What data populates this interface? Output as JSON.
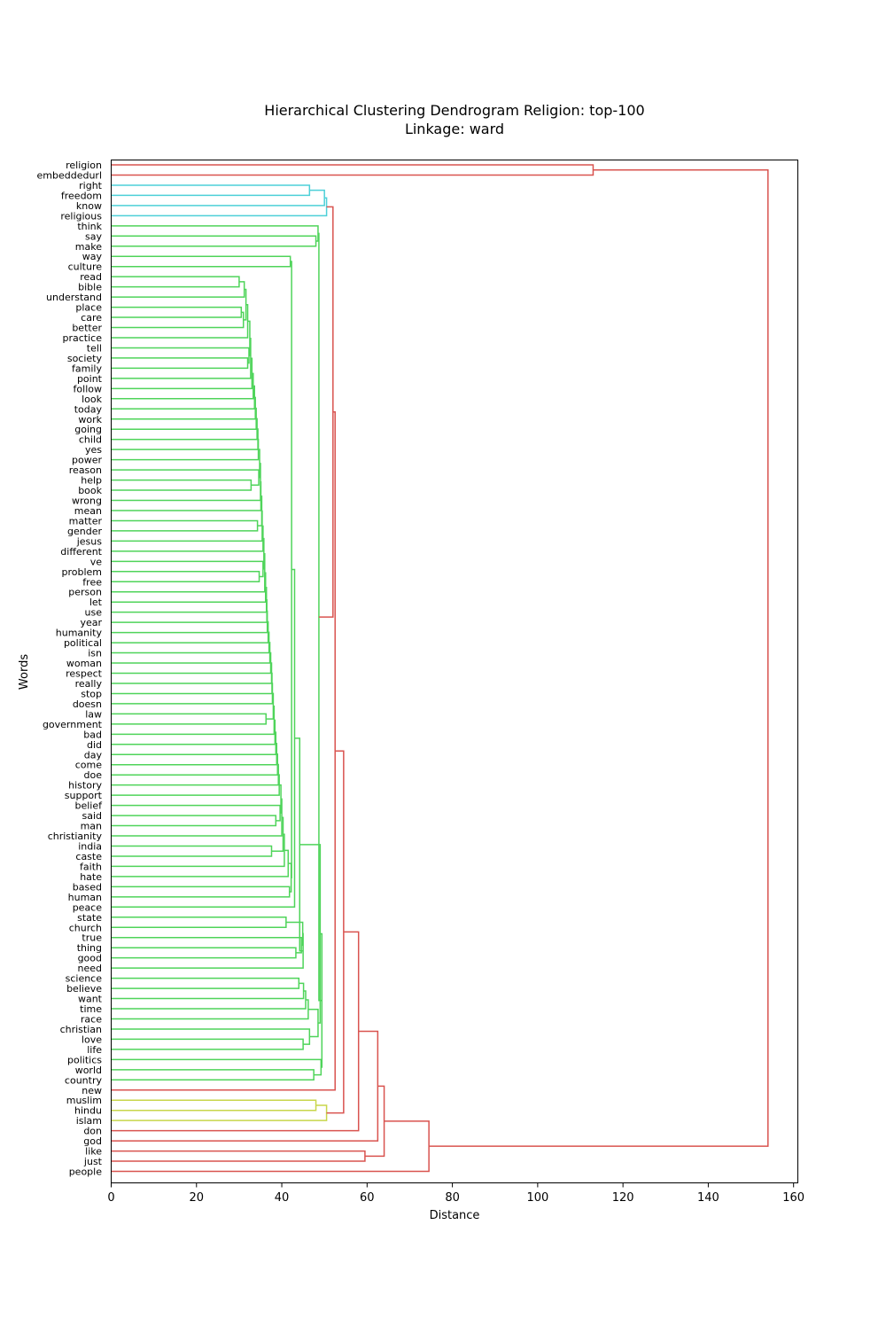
{
  "chart_data": {
    "type": "dendrogram",
    "title": "Hierarchical Clustering Dendrogram Religion: top-100",
    "subtitle": "Linkage: ward",
    "xlabel": "Distance",
    "ylabel": "Words",
    "xlim": [
      0,
      161
    ],
    "xticks": [
      "0",
      "20",
      "40",
      "60",
      "80",
      "100",
      "120",
      "140",
      "160"
    ],
    "orientation": "leaves-left",
    "colors": {
      "above_threshold": "#d9534f",
      "cluster_cyan": "#4dd0d8",
      "cluster_green": "#4fd45a",
      "cluster_yellow": "#c8d64a",
      "frame": "#000000"
    },
    "leaves": [
      "religion",
      "embeddedurl",
      "right",
      "freedom",
      "know",
      "religious",
      "think",
      "say",
      "make",
      "way",
      "culture",
      "read",
      "bible",
      "understand",
      "place",
      "care",
      "better",
      "practice",
      "tell",
      "society",
      "family",
      "point",
      "follow",
      "look",
      "today",
      "work",
      "going",
      "child",
      "yes",
      "power",
      "reason",
      "help",
      "book",
      "wrong",
      "mean",
      "matter",
      "gender",
      "jesus",
      "different",
      "ve",
      "problem",
      "free",
      "person",
      "let",
      "use",
      "year",
      "humanity",
      "political",
      "isn",
      "woman",
      "respect",
      "really",
      "stop",
      "doesn",
      "law",
      "government",
      "bad",
      "did",
      "day",
      "come",
      "doe",
      "history",
      "support",
      "belief",
      "said",
      "man",
      "christianity",
      "india",
      "caste",
      "faith",
      "hate",
      "based",
      "human",
      "peace",
      "state",
      "church",
      "true",
      "thing",
      "good",
      "need",
      "science",
      "believe",
      "want",
      "time",
      "race",
      "christian",
      "love",
      "life",
      "politics",
      "world",
      "country",
      "new",
      "muslim",
      "hindu",
      "islam",
      "don",
      "god",
      "like",
      "just",
      "people"
    ],
    "merges": [
      {
        "l": "read",
        "r": "bible",
        "d": 30,
        "c": "g",
        "id": "m_rb"
      },
      {
        "l": "place",
        "r": "care",
        "d": 30.5,
        "c": "g",
        "id": "m_pc"
      },
      {
        "l": "m_pc",
        "r": "better",
        "d": 31,
        "c": "g",
        "id": "m_pcb"
      },
      {
        "l": "m_rb",
        "r": "understand",
        "d": 31.2,
        "c": "g",
        "id": "m_rbu"
      },
      {
        "l": "m_rbu",
        "r": "m_pcb",
        "d": 31.6,
        "c": "g",
        "id": "m1"
      },
      {
        "l": "m1",
        "r": "practice",
        "d": 32,
        "c": "g",
        "id": "m2"
      },
      {
        "l": "society",
        "r": "family",
        "d": 32,
        "c": "g",
        "id": "m_sf"
      },
      {
        "l": "tell",
        "r": "m_sf",
        "d": 32.3,
        "c": "g",
        "id": "m_tsf"
      },
      {
        "l": "m2",
        "r": "m_tsf",
        "d": 32.5,
        "c": "g",
        "id": "m3"
      },
      {
        "l": "m3",
        "r": "point",
        "d": 32.7,
        "c": "g",
        "id": "m4"
      },
      {
        "l": "m4",
        "r": "follow",
        "d": 33,
        "c": "g",
        "id": "m5"
      },
      {
        "l": "m5",
        "r": "look",
        "d": 33.3,
        "c": "g",
        "id": "m6"
      },
      {
        "l": "m6",
        "r": "today",
        "d": 33.6,
        "c": "g",
        "id": "m7"
      },
      {
        "l": "m7",
        "r": "work",
        "d": 33.8,
        "c": "g",
        "id": "m8"
      },
      {
        "l": "m8",
        "r": "going",
        "d": 34,
        "c": "g",
        "id": "m9"
      },
      {
        "l": "m9",
        "r": "child",
        "d": 34.2,
        "c": "g",
        "id": "m10"
      },
      {
        "l": "m10",
        "r": "yes",
        "d": 34.4,
        "c": "g",
        "id": "m11"
      },
      {
        "l": "m11",
        "r": "power",
        "d": 34.5,
        "c": "g",
        "id": "m12"
      },
      {
        "l": "help",
        "r": "book",
        "d": 32.8,
        "c": "g",
        "id": "m_hb"
      },
      {
        "l": "reason",
        "r": "m_hb",
        "d": 34.6,
        "c": "g",
        "id": "m_rhb"
      },
      {
        "l": "m12",
        "r": "m_rhb",
        "d": 34.8,
        "c": "g",
        "id": "m13"
      },
      {
        "l": "m13",
        "r": "wrong",
        "d": 35,
        "c": "g",
        "id": "m14"
      },
      {
        "l": "m14",
        "r": "mean",
        "d": 35.1,
        "c": "g",
        "id": "m15"
      },
      {
        "l": "matter",
        "r": "gender",
        "d": 34.3,
        "c": "g",
        "id": "m_mg"
      },
      {
        "l": "m15",
        "r": "m_mg",
        "d": 35.3,
        "c": "g",
        "id": "m16"
      },
      {
        "l": "m16",
        "r": "jesus",
        "d": 35.4,
        "c": "g",
        "id": "m17"
      },
      {
        "l": "m17",
        "r": "different",
        "d": 35.6,
        "c": "g",
        "id": "m18"
      },
      {
        "l": "problem",
        "r": "free",
        "d": 34.7,
        "c": "g",
        "id": "m_pf"
      },
      {
        "l": "ve",
        "r": "m_pf",
        "d": 35.6,
        "c": "g",
        "id": "m_vpf"
      },
      {
        "l": "m18",
        "r": "m_vpf",
        "d": 35.8,
        "c": "g",
        "id": "m19"
      },
      {
        "l": "m19",
        "r": "person",
        "d": 36,
        "c": "g",
        "id": "m20"
      },
      {
        "l": "m20",
        "r": "let",
        "d": 36.2,
        "c": "g",
        "id": "m21"
      },
      {
        "l": "m21",
        "r": "use",
        "d": 36.4,
        "c": "g",
        "id": "m22"
      },
      {
        "l": "m22",
        "r": "year",
        "d": 36.5,
        "c": "g",
        "id": "m23"
      },
      {
        "l": "m23",
        "r": "humanity",
        "d": 36.6,
        "c": "g",
        "id": "m24"
      },
      {
        "l": "m24",
        "r": "political",
        "d": 36.8,
        "c": "g",
        "id": "m25"
      },
      {
        "l": "m25",
        "r": "isn",
        "d": 37,
        "c": "g",
        "id": "m26"
      },
      {
        "l": "m26",
        "r": "woman",
        "d": 37.2,
        "c": "g",
        "id": "m27"
      },
      {
        "l": "m27",
        "r": "respect",
        "d": 37.4,
        "c": "g",
        "id": "m28"
      },
      {
        "l": "m28",
        "r": "really",
        "d": 37.6,
        "c": "g",
        "id": "m29"
      },
      {
        "l": "m29",
        "r": "stop",
        "d": 37.7,
        "c": "g",
        "id": "m30"
      },
      {
        "l": "m30",
        "r": "doesn",
        "d": 37.8,
        "c": "g",
        "id": "m31"
      },
      {
        "l": "law",
        "r": "government",
        "d": 36.3,
        "c": "g",
        "id": "m_lg"
      },
      {
        "l": "m31",
        "r": "m_lg",
        "d": 38,
        "c": "g",
        "id": "m32"
      },
      {
        "l": "m32",
        "r": "bad",
        "d": 38.2,
        "c": "g",
        "id": "m33"
      },
      {
        "l": "m33",
        "r": "did",
        "d": 38.4,
        "c": "g",
        "id": "m34"
      },
      {
        "l": "m34",
        "r": "day",
        "d": 38.6,
        "c": "g",
        "id": "m35"
      },
      {
        "l": "m35",
        "r": "come",
        "d": 38.8,
        "c": "g",
        "id": "m36"
      },
      {
        "l": "m36",
        "r": "doe",
        "d": 39,
        "c": "g",
        "id": "m37"
      },
      {
        "l": "m37",
        "r": "history",
        "d": 39.2,
        "c": "g",
        "id": "m38"
      },
      {
        "l": "m38",
        "r": "support",
        "d": 39.4,
        "c": "g",
        "id": "m39"
      },
      {
        "l": "said",
        "r": "man",
        "d": 38.6,
        "c": "g",
        "id": "m_sm"
      },
      {
        "l": "belief",
        "r": "m_sm",
        "d": 39.6,
        "c": "g",
        "id": "m_bsm"
      },
      {
        "l": "m39",
        "r": "m_bsm",
        "d": 39.8,
        "c": "g",
        "id": "m40"
      },
      {
        "l": "m40",
        "r": "christianity",
        "d": 40,
        "c": "g",
        "id": "m41"
      },
      {
        "l": "india",
        "r": "caste",
        "d": 37.6,
        "c": "g",
        "id": "m_ic"
      },
      {
        "l": "m41",
        "r": "m_ic",
        "d": 40.3,
        "c": "g",
        "id": "m42"
      },
      {
        "l": "m42",
        "r": "faith",
        "d": 40.6,
        "c": "g",
        "id": "m43"
      },
      {
        "l": "m43",
        "r": "hate",
        "d": 41.5,
        "c": "g",
        "id": "m44"
      },
      {
        "l": "based",
        "r": "human",
        "d": 41.8,
        "c": "g",
        "id": "m_bh"
      },
      {
        "l": "m44",
        "r": "m_bh",
        "d": 42.2,
        "c": "g",
        "id": "m45"
      },
      {
        "l": "way",
        "r": "culture",
        "d": 42,
        "c": "g",
        "id": "m_wc"
      },
      {
        "l": "m_wc",
        "r": "m45",
        "d": 42.3,
        "c": "g",
        "id": "m46"
      },
      {
        "l": "m46",
        "r": "peace",
        "d": 43,
        "c": "g",
        "id": "m47"
      },
      {
        "l": "state",
        "r": "church",
        "d": 41,
        "c": "g",
        "id": "m_sc"
      },
      {
        "l": "thing",
        "r": "good",
        "d": 43.3,
        "c": "g",
        "id": "m_tg"
      },
      {
        "l": "true",
        "r": "m_tg",
        "d": 44.6,
        "c": "g",
        "id": "m_ttg"
      },
      {
        "l": "m_sc",
        "r": "m_ttg",
        "d": 44.9,
        "c": "g",
        "id": "m_sct"
      },
      {
        "l": "m_sct",
        "r": "need",
        "d": 45,
        "c": "g",
        "id": "m_sctn"
      },
      {
        "l": "m47",
        "r": "m_sctn",
        "d": 44.2,
        "c": "g",
        "id": "m48"
      },
      {
        "l": "science",
        "r": "believe",
        "d": 44,
        "c": "g",
        "id": "m_sb"
      },
      {
        "l": "m_sb",
        "r": "want",
        "d": 45.1,
        "c": "g",
        "id": "m_sbw"
      },
      {
        "l": "m_sbw",
        "r": "time",
        "d": 45.6,
        "c": "g",
        "id": "m_sbwt"
      },
      {
        "l": "m_sbwt",
        "r": "race",
        "d": 46.2,
        "c": "g",
        "id": "m_sbwtr"
      },
      {
        "l": "love",
        "r": "life",
        "d": 45,
        "c": "g",
        "id": "m_ll"
      },
      {
        "l": "christian",
        "r": "m_ll",
        "d": 46.5,
        "c": "g",
        "id": "m_cll"
      },
      {
        "l": "m_sbwtr",
        "r": "m_cll",
        "d": 48.5,
        "c": "g",
        "id": "m_sci"
      },
      {
        "l": "m48",
        "r": "m_sci",
        "d": 49,
        "c": "g",
        "id": "m49"
      },
      {
        "l": "world",
        "r": "country",
        "d": 47.5,
        "c": "g",
        "id": "m_wco"
      },
      {
        "l": "politics",
        "r": "m_wco",
        "d": 49.2,
        "c": "g",
        "id": "m_pwc"
      },
      {
        "l": "m49",
        "r": "m_pwc",
        "d": 49.4,
        "c": "g",
        "id": "m50"
      },
      {
        "l": "say",
        "r": "make",
        "d": 48,
        "c": "g",
        "id": "m_sma"
      },
      {
        "l": "think",
        "r": "m_sma",
        "d": 48.5,
        "c": "g",
        "id": "m_tsm"
      },
      {
        "l": "m_tsm",
        "r": "m50",
        "d": 48.7,
        "c": "g",
        "id": "mG"
      },
      {
        "l": "right",
        "r": "freedom",
        "d": 46.5,
        "c": "c",
        "id": "m_rf"
      },
      {
        "l": "m_rf",
        "r": "know",
        "d": 50,
        "c": "c",
        "id": "m_rfk"
      },
      {
        "l": "m_rfk",
        "r": "religious",
        "d": 50.5,
        "c": "c",
        "id": "mC"
      },
      {
        "l": "mC",
        "r": "mG",
        "d": 52,
        "c": "r",
        "id": "mCG"
      },
      {
        "l": "mCG",
        "r": "new",
        "d": 52.5,
        "c": "r",
        "id": "mN"
      },
      {
        "l": "muslim",
        "r": "hindu",
        "d": 48,
        "c": "y",
        "id": "m_mh"
      },
      {
        "l": "m_mh",
        "r": "islam",
        "d": 50.5,
        "c": "y",
        "id": "mY"
      },
      {
        "l": "mN",
        "r": "mY",
        "d": 54.5,
        "c": "r",
        "id": "mNY"
      },
      {
        "l": "mNY",
        "r": "don",
        "d": 58,
        "c": "r",
        "id": "mD"
      },
      {
        "l": "mD",
        "r": "god",
        "d": 62.5,
        "c": "r",
        "id": "mGod"
      },
      {
        "l": "like",
        "r": "just",
        "d": 59.5,
        "c": "r",
        "id": "m_lj"
      },
      {
        "l": "mGod",
        "r": "m_lj",
        "d": 64,
        "c": "r",
        "id": "mL"
      },
      {
        "l": "mL",
        "r": "people",
        "d": 74.5,
        "c": "r",
        "id": "mP"
      },
      {
        "l": "religion",
        "r": "embeddedurl",
        "d": 113,
        "c": "r",
        "id": "mR"
      },
      {
        "l": "mR",
        "r": "mP",
        "d": 154,
        "c": "r",
        "id": "root"
      }
    ]
  }
}
